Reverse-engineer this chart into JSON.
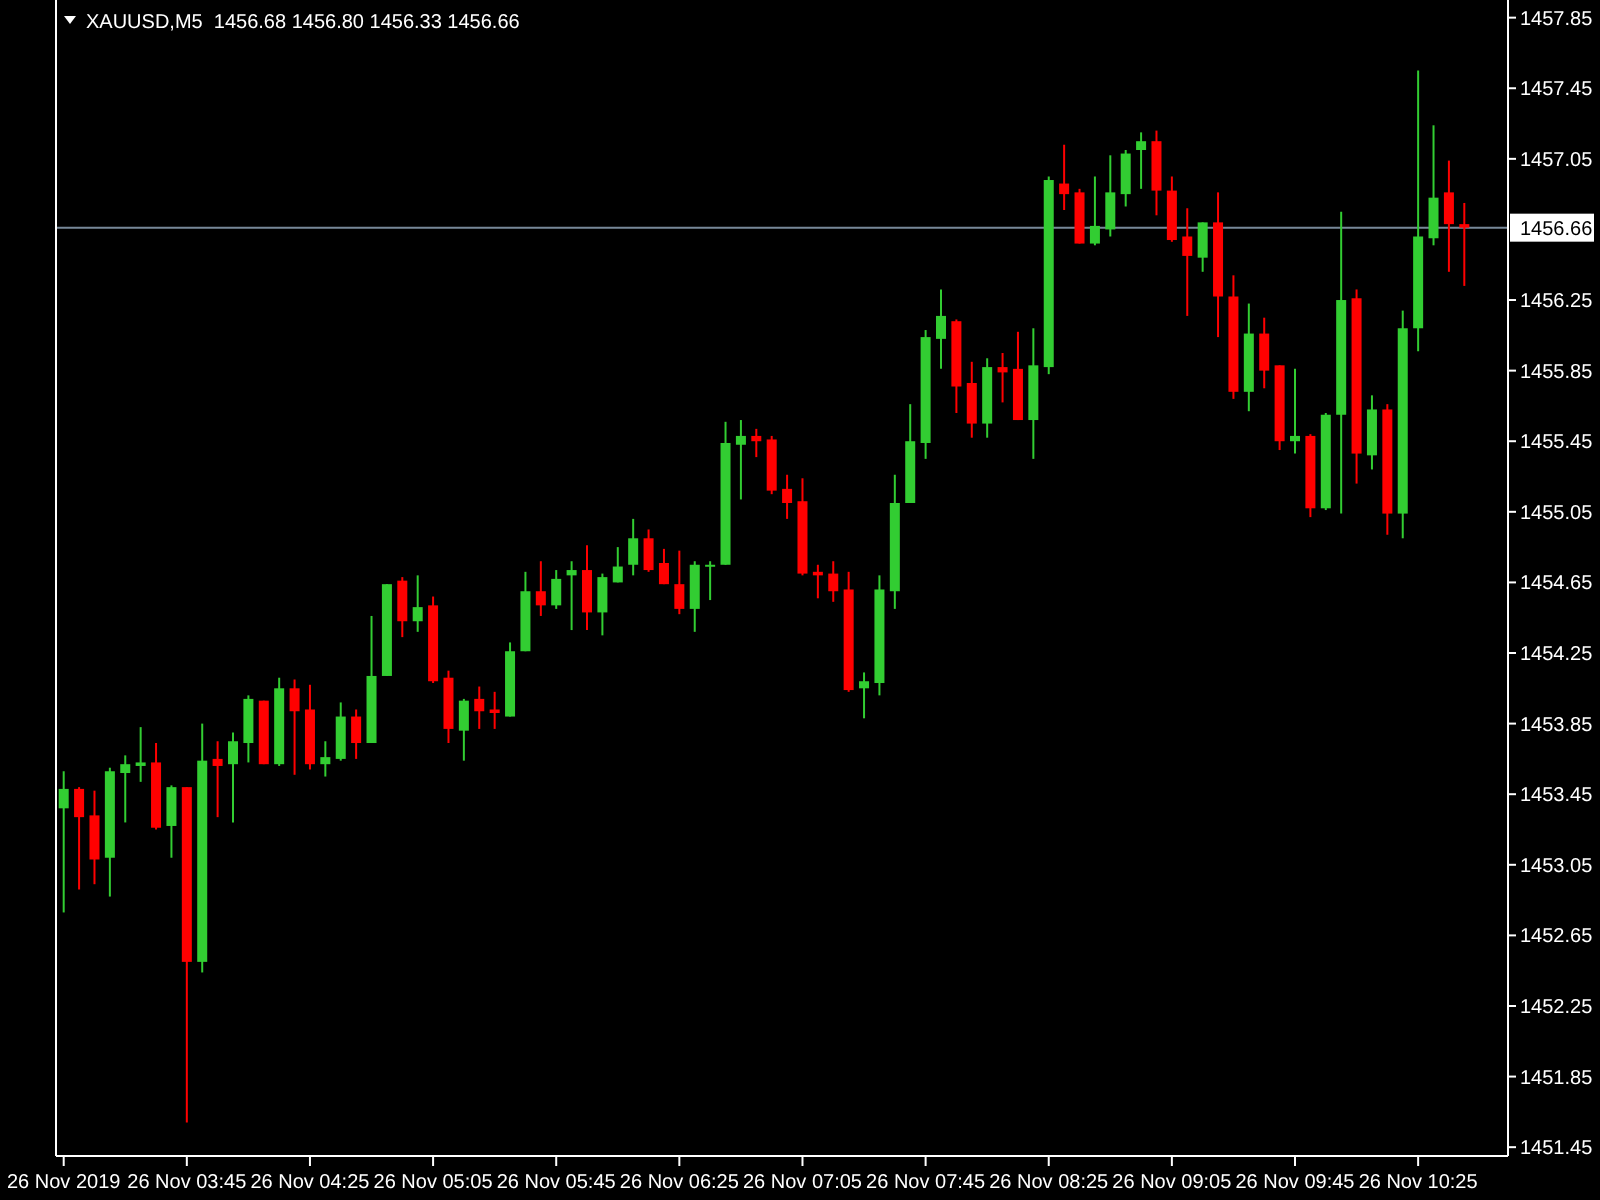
{
  "chart_data": {
    "type": "candlestick",
    "title": "XAUUSD,M5  1456.68 1456.80 1456.33 1456.66",
    "categories": [
      "26 Nov 2019",
      null,
      null,
      null,
      null,
      null,
      null,
      null,
      "26 Nov 03:45",
      null,
      null,
      null,
      null,
      null,
      null,
      null,
      "26 Nov 04:25",
      null,
      null,
      null,
      null,
      null,
      null,
      null,
      "26 Nov 05:05",
      null,
      null,
      null,
      null,
      null,
      null,
      null,
      "26 Nov 05:45",
      null,
      null,
      null,
      null,
      null,
      null,
      null,
      "26 Nov 06:25",
      null,
      null,
      null,
      null,
      null,
      null,
      null,
      "26 Nov 07:05",
      null,
      null,
      null,
      null,
      null,
      null,
      null,
      "26 Nov 07:45",
      null,
      null,
      null,
      null,
      null,
      null,
      null,
      "26 Nov 08:25",
      null,
      null,
      null,
      null,
      null,
      null,
      null,
      "26 Nov 09:05",
      null,
      null,
      null,
      null,
      null,
      null,
      null,
      "26 Nov 09:45",
      null,
      null,
      null,
      null,
      null,
      null,
      null,
      "26 Nov 10:25",
      null,
      null,
      null
    ],
    "ohlc": [
      [
        1453.37,
        1453.58,
        1452.78,
        1453.48
      ],
      [
        1453.48,
        1453.49,
        1452.91,
        1453.32
      ],
      [
        1453.33,
        1453.47,
        1452.94,
        1453.08
      ],
      [
        1453.09,
        1453.6,
        1452.87,
        1453.58
      ],
      [
        1453.57,
        1453.67,
        1453.29,
        1453.62
      ],
      [
        1453.61,
        1453.83,
        1453.52,
        1453.63
      ],
      [
        1453.63,
        1453.74,
        1453.25,
        1453.26
      ],
      [
        1453.27,
        1453.5,
        1453.09,
        1453.49
      ],
      [
        1453.49,
        1453.49,
        1451.59,
        1452.5
      ],
      [
        1452.5,
        1453.85,
        1452.44,
        1453.64
      ],
      [
        1453.65,
        1453.75,
        1453.32,
        1453.61
      ],
      [
        1453.62,
        1453.8,
        1453.29,
        1453.75
      ],
      [
        1453.74,
        1454.01,
        1453.63,
        1453.99
      ],
      [
        1453.98,
        1453.98,
        1453.62,
        1453.62
      ],
      [
        1453.62,
        1454.11,
        1453.61,
        1454.05
      ],
      [
        1454.05,
        1454.1,
        1453.56,
        1453.92
      ],
      [
        1453.93,
        1454.07,
        1453.59,
        1453.62
      ],
      [
        1453.62,
        1453.75,
        1453.55,
        1453.66
      ],
      [
        1453.65,
        1453.97,
        1453.64,
        1453.89
      ],
      [
        1453.89,
        1453.93,
        1453.65,
        1453.74
      ],
      [
        1453.74,
        1454.46,
        1453.74,
        1454.12
      ],
      [
        1454.12,
        1454.64,
        1454.12,
        1454.64
      ],
      [
        1454.66,
        1454.68,
        1454.34,
        1454.43
      ],
      [
        1454.43,
        1454.69,
        1454.37,
        1454.51
      ],
      [
        1454.52,
        1454.57,
        1454.08,
        1454.09
      ],
      [
        1454.11,
        1454.15,
        1453.74,
        1453.82
      ],
      [
        1453.81,
        1453.99,
        1453.64,
        1453.98
      ],
      [
        1453.99,
        1454.06,
        1453.82,
        1453.92
      ],
      [
        1453.93,
        1454.03,
        1453.82,
        1453.91
      ],
      [
        1453.89,
        1454.31,
        1453.89,
        1454.26
      ],
      [
        1454.26,
        1454.71,
        1454.26,
        1454.6
      ],
      [
        1454.6,
        1454.77,
        1454.46,
        1454.52
      ],
      [
        1454.52,
        1454.72,
        1454.5,
        1454.67
      ],
      [
        1454.69,
        1454.77,
        1454.38,
        1454.72
      ],
      [
        1454.72,
        1454.86,
        1454.38,
        1454.48
      ],
      [
        1454.48,
        1454.7,
        1454.35,
        1454.68
      ],
      [
        1454.65,
        1454.85,
        1454.65,
        1454.74
      ],
      [
        1454.75,
        1455.01,
        1454.69,
        1454.9
      ],
      [
        1454.9,
        1454.95,
        1454.71,
        1454.72
      ],
      [
        1454.76,
        1454.84,
        1454.64,
        1454.64
      ],
      [
        1454.64,
        1454.83,
        1454.47,
        1454.5
      ],
      [
        1454.5,
        1454.77,
        1454.37,
        1454.75
      ],
      [
        1454.74,
        1454.77,
        1454.55,
        1454.75
      ],
      [
        1454.75,
        1455.56,
        1454.75,
        1455.44
      ],
      [
        1455.43,
        1455.57,
        1455.12,
        1455.48
      ],
      [
        1455.48,
        1455.52,
        1455.36,
        1455.45
      ],
      [
        1455.46,
        1455.48,
        1455.15,
        1455.17
      ],
      [
        1455.18,
        1455.26,
        1455.01,
        1455.1
      ],
      [
        1455.11,
        1455.24,
        1454.69,
        1454.7
      ],
      [
        1454.71,
        1454.75,
        1454.56,
        1454.69
      ],
      [
        1454.7,
        1454.77,
        1454.54,
        1454.6
      ],
      [
        1454.61,
        1454.71,
        1454.03,
        1454.04
      ],
      [
        1454.05,
        1454.14,
        1453.88,
        1454.09
      ],
      [
        1454.08,
        1454.69,
        1454.01,
        1454.61
      ],
      [
        1454.6,
        1455.26,
        1454.5,
        1455.1
      ],
      [
        1455.1,
        1455.66,
        1455.1,
        1455.45
      ],
      [
        1455.44,
        1456.08,
        1455.35,
        1456.04
      ],
      [
        1456.03,
        1456.31,
        1455.86,
        1456.16
      ],
      [
        1456.13,
        1456.14,
        1455.61,
        1455.76
      ],
      [
        1455.78,
        1455.9,
        1455.47,
        1455.55
      ],
      [
        1455.55,
        1455.92,
        1455.47,
        1455.87
      ],
      [
        1455.87,
        1455.95,
        1455.67,
        1455.84
      ],
      [
        1455.86,
        1456.07,
        1455.57,
        1455.57
      ],
      [
        1455.57,
        1456.09,
        1455.35,
        1455.88
      ],
      [
        1455.87,
        1456.95,
        1455.83,
        1456.93
      ],
      [
        1456.91,
        1457.13,
        1456.76,
        1456.85
      ],
      [
        1456.86,
        1456.88,
        1456.57,
        1456.57
      ],
      [
        1456.57,
        1456.95,
        1456.56,
        1456.67
      ],
      [
        1456.65,
        1457.07,
        1456.61,
        1456.86
      ],
      [
        1456.85,
        1457.1,
        1456.78,
        1457.08
      ],
      [
        1457.1,
        1457.2,
        1456.88,
        1457.15
      ],
      [
        1457.15,
        1457.21,
        1456.73,
        1456.87
      ],
      [
        1456.87,
        1456.95,
        1456.58,
        1456.59
      ],
      [
        1456.61,
        1456.77,
        1456.16,
        1456.5
      ],
      [
        1456.49,
        1456.69,
        1456.41,
        1456.69
      ],
      [
        1456.69,
        1456.86,
        1456.04,
        1456.27
      ],
      [
        1456.27,
        1456.39,
        1455.69,
        1455.73
      ],
      [
        1455.73,
        1456.23,
        1455.62,
        1456.06
      ],
      [
        1456.06,
        1456.15,
        1455.75,
        1455.85
      ],
      [
        1455.88,
        1455.88,
        1455.4,
        1455.45
      ],
      [
        1455.45,
        1455.86,
        1455.38,
        1455.48
      ],
      [
        1455.48,
        1455.49,
        1455.02,
        1455.07
      ],
      [
        1455.07,
        1455.61,
        1455.06,
        1455.6
      ],
      [
        1455.6,
        1456.75,
        1455.04,
        1456.25
      ],
      [
        1456.26,
        1456.31,
        1455.21,
        1455.38
      ],
      [
        1455.37,
        1455.71,
        1455.29,
        1455.63
      ],
      [
        1455.63,
        1455.66,
        1454.92,
        1455.04
      ],
      [
        1455.04,
        1456.19,
        1454.9,
        1456.09
      ],
      [
        1456.09,
        1457.55,
        1455.96,
        1456.61
      ],
      [
        1456.6,
        1457.24,
        1456.56,
        1456.83
      ],
      [
        1456.86,
        1457.04,
        1456.41,
        1456.68
      ],
      [
        1456.68,
        1456.8,
        1456.33,
        1456.66
      ]
    ],
    "colors": [
      "#32cd32",
      "#ff0000",
      "#ff0000",
      "#32cd32",
      "#32cd32",
      "#32cd32",
      "#ff0000",
      "#32cd32",
      "#ff0000",
      "#32cd32",
      "#ff0000",
      "#32cd32",
      "#32cd32",
      "#ff0000",
      "#32cd32",
      "#ff0000",
      "#ff0000",
      "#32cd32",
      "#32cd32",
      "#ff0000",
      "#32cd32",
      "#32cd32",
      "#ff0000",
      "#32cd32",
      "#ff0000",
      "#ff0000",
      "#32cd32",
      "#ff0000",
      "#ff0000",
      "#32cd32",
      "#32cd32",
      "#ff0000",
      "#32cd32",
      "#32cd32",
      "#ff0000",
      "#32cd32",
      "#32cd32",
      "#32cd32",
      "#ff0000",
      "#ff0000",
      "#ff0000",
      "#32cd32",
      "#32cd32",
      "#32cd32",
      "#32cd32",
      "#ff0000",
      "#ff0000",
      "#ff0000",
      "#ff0000",
      "#ff0000",
      "#ff0000",
      "#ff0000",
      "#32cd32",
      "#32cd32",
      "#32cd32",
      "#32cd32",
      "#32cd32",
      "#32cd32",
      "#ff0000",
      "#ff0000",
      "#32cd32",
      "#ff0000",
      "#ff0000",
      "#32cd32",
      "#32cd32",
      "#ff0000",
      "#ff0000",
      "#32cd32",
      "#32cd32",
      "#32cd32",
      "#32cd32",
      "#ff0000",
      "#ff0000",
      "#ff0000",
      "#32cd32",
      "#ff0000",
      "#ff0000",
      "#32cd32",
      "#ff0000",
      "#ff0000",
      "#32cd32",
      "#ff0000",
      "#32cd32",
      "#32cd32",
      "#ff0000",
      "#32cd32",
      "#ff0000",
      "#32cd32",
      "#32cd32",
      "#32cd32",
      "#ff0000",
      "#ff0000"
    ],
    "ylim": [
      1451.4,
      1457.95
    ],
    "yticks": [
      1451.45,
      1451.85,
      1452.25,
      1452.65,
      1453.05,
      1453.45,
      1453.85,
      1454.25,
      1454.65,
      1455.05,
      1455.45,
      1455.85,
      1456.25,
      1457.05,
      1457.45,
      1457.85
    ],
    "ref_lines": [
      {
        "axis": "y",
        "value": 1456.66,
        "label": "1456.66",
        "color": "#778899"
      }
    ]
  }
}
